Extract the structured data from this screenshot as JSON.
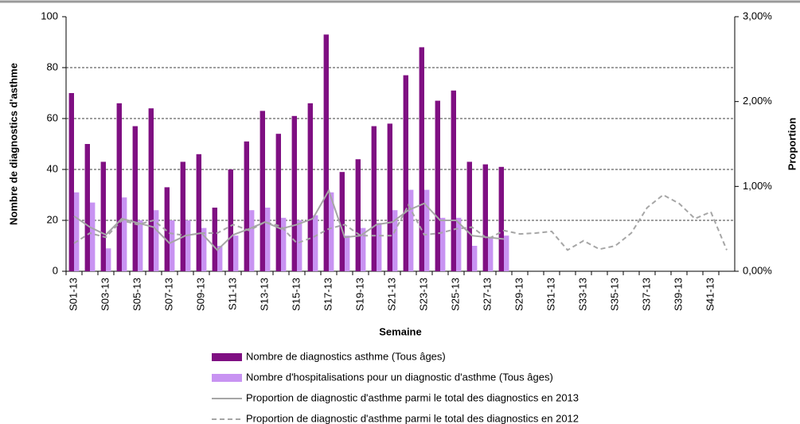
{
  "chart_data": {
    "type": "bar",
    "y_axis_label": "Nombre de diagnostics d'asthme",
    "y2_axis_label": "Proportion",
    "x_axis_label": "Semaine",
    "categories": [
      "S01-13",
      null,
      "S03-13",
      null,
      "S05-13",
      null,
      "S07-13",
      null,
      "S09-13",
      null,
      "S11-13",
      null,
      "S13-13",
      null,
      "S15-13",
      null,
      "S17-13",
      null,
      "S19-13",
      null,
      "S21-13",
      null,
      "S23-13",
      null,
      "S25-13",
      null,
      "S27-13",
      null,
      "S29-13",
      null,
      "S31-13",
      null,
      "S33-13",
      null,
      "S35-13",
      null,
      "S37-13",
      null,
      "S39-13",
      null,
      "S41-13",
      null
    ],
    "ylim": [
      0,
      100
    ],
    "yticks": [
      0,
      20,
      40,
      60,
      80,
      100
    ],
    "y2lim": [
      0,
      3
    ],
    "y2ticks": [
      {
        "value": 0,
        "label": "0,00%"
      },
      {
        "value": 1,
        "label": "1,00%"
      },
      {
        "value": 2,
        "label": "2,00%"
      },
      {
        "value": 3,
        "label": "3,00%"
      }
    ],
    "grid": true,
    "series": [
      {
        "name": "Nombre de diagnostics asthme (Tous âges)",
        "type": "bar",
        "color": "#7f0f82",
        "values": [
          70,
          50,
          43,
          66,
          57,
          64,
          33,
          43,
          46,
          25,
          40,
          51,
          63,
          54,
          61,
          66,
          93,
          39,
          44,
          57,
          58,
          77,
          88,
          67,
          71,
          43,
          42,
          41,
          null,
          null,
          null,
          null,
          null,
          null,
          null,
          null,
          null,
          null,
          null,
          null,
          null,
          null
        ]
      },
      {
        "name": "Nombre d'hospitalisations pour un diagnostic d'asthme (Tous âges)",
        "type": "bar",
        "color": "#c893f2",
        "values": [
          31,
          27,
          9,
          29,
          20,
          24,
          20,
          20,
          17,
          10,
          14,
          24,
          25,
          21,
          20,
          22,
          31,
          14,
          17,
          19,
          24,
          32,
          32,
          21,
          21,
          10,
          13,
          14,
          null,
          null,
          null,
          null,
          null,
          null,
          null,
          null,
          null,
          null,
          null,
          null,
          null,
          null
        ]
      },
      {
        "name": "Proportion de diagnostic d'asthme parmi le total des diagnostics en 2013",
        "type": "line",
        "axis": "y2",
        "color": "#a6a6a6",
        "dash": false,
        "values": [
          0.65,
          0.52,
          0.43,
          0.62,
          0.57,
          0.52,
          0.33,
          0.42,
          0.45,
          0.25,
          0.43,
          0.5,
          0.58,
          0.5,
          0.55,
          0.62,
          0.95,
          0.4,
          0.42,
          0.55,
          0.58,
          0.72,
          0.8,
          0.6,
          0.6,
          0.42,
          0.4,
          0.38,
          null,
          null,
          null,
          null,
          null,
          null,
          null,
          null,
          null,
          null,
          null,
          null,
          null,
          null
        ]
      },
      {
        "name": "Proportion de diagnostic d'asthme parmi le total des diagnostics en 2012",
        "type": "line",
        "axis": "y2",
        "color": "#a6a6a6",
        "dash": true,
        "values": [
          0.33,
          0.45,
          0.4,
          0.6,
          0.55,
          0.6,
          0.45,
          0.42,
          0.45,
          0.45,
          0.55,
          0.48,
          0.58,
          0.53,
          0.33,
          0.4,
          0.5,
          0.55,
          0.42,
          0.42,
          0.42,
          0.78,
          0.43,
          0.45,
          0.5,
          0.52,
          0.38,
          0.48,
          0.44,
          0.45,
          0.47,
          0.25,
          0.36,
          0.26,
          0.3,
          0.45,
          0.75,
          0.9,
          0.8,
          0.62,
          0.7,
          0.25
        ]
      }
    ]
  }
}
